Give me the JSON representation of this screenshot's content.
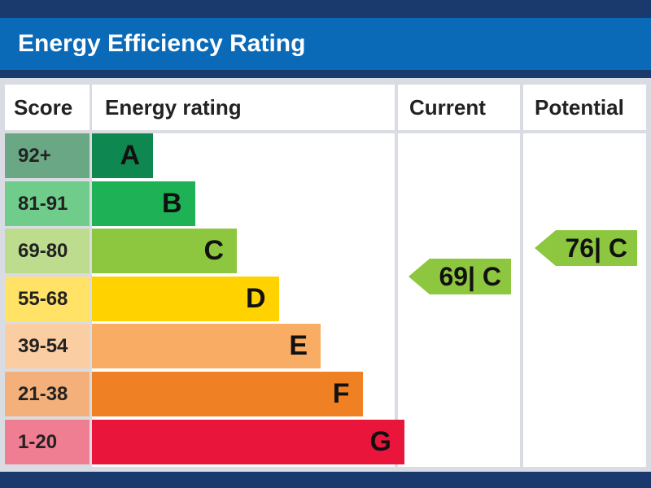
{
  "title": "Energy Efficiency Rating",
  "headers": {
    "score": "Score",
    "rating": "Energy rating",
    "current": "Current",
    "potential": "Potential"
  },
  "chart_data": {
    "type": "table",
    "bands": [
      {
        "score": "92+",
        "letter": "A",
        "color": "#0e8750",
        "score_bg": "#6aa784"
      },
      {
        "score": "81-91",
        "letter": "B",
        "color": "#1fb155",
        "score_bg": "#6fcc8a"
      },
      {
        "score": "69-80",
        "letter": "C",
        "color": "#8dc63f",
        "score_bg": "#bddc8e"
      },
      {
        "score": "55-68",
        "letter": "D",
        "color": "#ffd200",
        "score_bg": "#ffe266"
      },
      {
        "score": "39-54",
        "letter": "E",
        "color": "#f9ac64",
        "score_bg": "#fbcda3"
      },
      {
        "score": "21-38",
        "letter": "F",
        "color": "#ef8023",
        "score_bg": "#f4b07a"
      },
      {
        "score": "1-20",
        "letter": "G",
        "color": "#e9153b",
        "score_bg": "#f07e93"
      }
    ],
    "current": {
      "value": 69,
      "band": "C",
      "label": "69| C",
      "color": "#8dc63f"
    },
    "potential": {
      "value": 76,
      "band": "C",
      "label": "76| C",
      "color": "#8dc63f"
    }
  }
}
